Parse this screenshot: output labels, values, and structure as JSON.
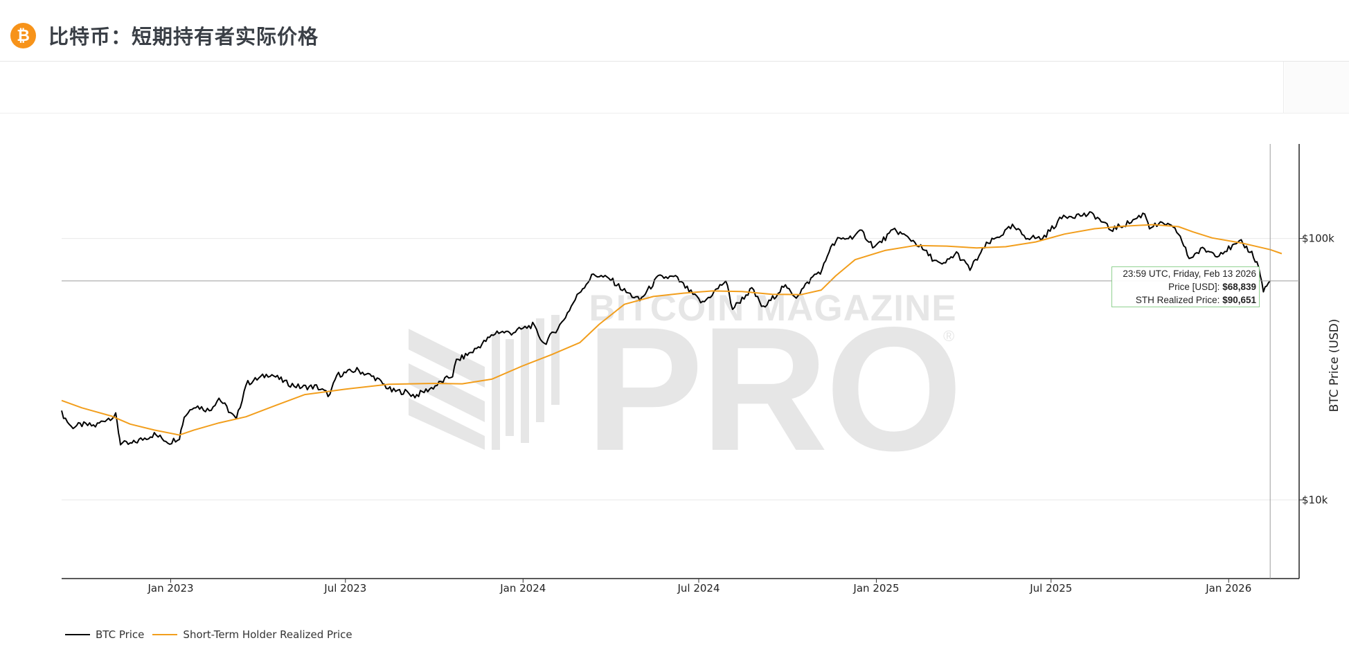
{
  "header": {
    "logo_glyph": "₿",
    "title": "比特币：短期持有者实际价格"
  },
  "watermark": {
    "line1": "BITCOIN MAGAZINE",
    "line2": "PRO",
    "mark": "®"
  },
  "tooltip": {
    "timestamp": "23:59 UTC, Friday, Feb 13 2026",
    "price_label": "Price [USD]:",
    "price_value": "$68,839",
    "sth_label": "STH Realized Price:",
    "sth_value": "$90,651"
  },
  "chart_data": {
    "type": "line",
    "title": "比特币：短期持有者实际价格",
    "xlabel": "",
    "ylabel": "BTC Price (USD)",
    "y_scale": "log",
    "ylim": [
      5000,
      230000
    ],
    "x_range": [
      "2022-09-10",
      "2026-03-15"
    ],
    "x_tick_labels": [
      "Jan 2023",
      "Jul 2023",
      "Jan 2024",
      "Jul 2024",
      "Jan 2025",
      "Jul 2025",
      "Jan 2026"
    ],
    "x_ticks": [
      "2023-01-01",
      "2023-07-01",
      "2024-01-01",
      "2024-07-01",
      "2025-01-01",
      "2025-07-01",
      "2026-01-01"
    ],
    "y_ticks": [
      10000,
      100000
    ],
    "y_tick_labels": [
      "$10k",
      "$100k"
    ],
    "crosshair": {
      "date": "2026-02-13",
      "price": 68839
    },
    "grid": "horizontal",
    "legend_position": "bottom-left",
    "series": [
      {
        "name": "BTC Price",
        "color": "#000000",
        "points": [
          [
            "2022-09-10",
            21500
          ],
          [
            "2022-09-20",
            19000
          ],
          [
            "2022-10-01",
            19400
          ],
          [
            "2022-10-15",
            19200
          ],
          [
            "2022-10-25",
            20300
          ],
          [
            "2022-11-05",
            21000
          ],
          [
            "2022-11-08",
            18200
          ],
          [
            "2022-11-10",
            16500
          ],
          [
            "2022-11-20",
            16300
          ],
          [
            "2022-12-01",
            17000
          ],
          [
            "2022-12-15",
            17800
          ],
          [
            "2022-12-31",
            16600
          ],
          [
            "2023-01-10",
            17400
          ],
          [
            "2023-01-15",
            20800
          ],
          [
            "2023-01-25",
            23000
          ],
          [
            "2023-02-10",
            22000
          ],
          [
            "2023-02-20",
            24500
          ],
          [
            "2023-03-10",
            20200
          ],
          [
            "2023-03-20",
            27800
          ],
          [
            "2023-04-10",
            30000
          ],
          [
            "2023-04-14",
            30400
          ],
          [
            "2023-05-01",
            28000
          ],
          [
            "2023-05-15",
            27000
          ],
          [
            "2023-06-01",
            27100
          ],
          [
            "2023-06-15",
            25100
          ],
          [
            "2023-06-22",
            30000
          ],
          [
            "2023-07-13",
            31400
          ],
          [
            "2023-08-01",
            29300
          ],
          [
            "2023-08-18",
            26100
          ],
          [
            "2023-09-01",
            25900
          ],
          [
            "2023-09-11",
            25000
          ],
          [
            "2023-09-30",
            27000
          ],
          [
            "2023-10-20",
            30000
          ],
          [
            "2023-10-24",
            34000
          ],
          [
            "2023-11-10",
            37000
          ],
          [
            "2023-12-05",
            44000
          ],
          [
            "2023-12-20",
            43600
          ],
          [
            "2024-01-11",
            46600
          ],
          [
            "2024-01-23",
            39500
          ],
          [
            "2024-02-10",
            47500
          ],
          [
            "2024-02-28",
            62000
          ],
          [
            "2024-03-14",
            73000
          ],
          [
            "2024-04-01",
            69700
          ],
          [
            "2024-04-15",
            63000
          ],
          [
            "2024-05-01",
            58000
          ],
          [
            "2024-05-20",
            71000
          ],
          [
            "2024-06-07",
            71000
          ],
          [
            "2024-06-25",
            61000
          ],
          [
            "2024-07-05",
            56500
          ],
          [
            "2024-07-29",
            69000
          ],
          [
            "2024-08-05",
            53900
          ],
          [
            "2024-08-25",
            64000
          ],
          [
            "2024-09-06",
            54000
          ],
          [
            "2024-09-27",
            65800
          ],
          [
            "2024-10-10",
            60000
          ],
          [
            "2024-10-29",
            72500
          ],
          [
            "2024-11-06",
            75600
          ],
          [
            "2024-11-13",
            90000
          ],
          [
            "2024-11-22",
            98900
          ],
          [
            "2024-12-05",
            101000
          ],
          [
            "2024-12-17",
            106000
          ],
          [
            "2024-12-30",
            92500
          ],
          [
            "2025-01-20",
            108000
          ],
          [
            "2025-02-10",
            97000
          ],
          [
            "2025-02-28",
            84000
          ],
          [
            "2025-03-10",
            78500
          ],
          [
            "2025-03-25",
            88000
          ],
          [
            "2025-04-08",
            76300
          ],
          [
            "2025-04-25",
            94500
          ],
          [
            "2025-05-22",
            111000
          ],
          [
            "2025-06-05",
            101500
          ],
          [
            "2025-06-22",
            100000
          ],
          [
            "2025-07-14",
            122000
          ],
          [
            "2025-08-14",
            123500
          ],
          [
            "2025-09-01",
            108000
          ],
          [
            "2025-09-20",
            115000
          ],
          [
            "2025-10-06",
            125000
          ],
          [
            "2025-10-11",
            111000
          ],
          [
            "2025-10-28",
            114000
          ],
          [
            "2025-11-10",
            105000
          ],
          [
            "2025-11-21",
            84000
          ],
          [
            "2025-12-05",
            91000
          ],
          [
            "2025-12-20",
            87000
          ],
          [
            "2026-01-05",
            93000
          ],
          [
            "2026-01-14",
            96500
          ],
          [
            "2026-01-25",
            88000
          ],
          [
            "2026-02-01",
            78000
          ],
          [
            "2026-02-06",
            63000
          ],
          [
            "2026-02-13",
            68839
          ]
        ]
      },
      {
        "name": "Short-Term Holder Realized Price",
        "color": "#f29e1c",
        "points": [
          [
            "2022-09-10",
            24000
          ],
          [
            "2022-10-01",
            22500
          ],
          [
            "2022-11-01",
            20900
          ],
          [
            "2022-11-20",
            19500
          ],
          [
            "2022-12-15",
            18500
          ],
          [
            "2023-01-10",
            17700
          ],
          [
            "2023-01-25",
            18500
          ],
          [
            "2023-02-20",
            19700
          ],
          [
            "2023-03-20",
            20800
          ],
          [
            "2023-04-20",
            23000
          ],
          [
            "2023-05-20",
            25300
          ],
          [
            "2023-06-30",
            26500
          ],
          [
            "2023-08-15",
            27700
          ],
          [
            "2023-09-30",
            27900
          ],
          [
            "2023-10-30",
            27800
          ],
          [
            "2023-11-30",
            29000
          ],
          [
            "2023-12-31",
            32500
          ],
          [
            "2024-01-31",
            36000
          ],
          [
            "2024-02-29",
            40000
          ],
          [
            "2024-03-20",
            47000
          ],
          [
            "2024-04-15",
            56000
          ],
          [
            "2024-05-15",
            60000
          ],
          [
            "2024-06-15",
            61800
          ],
          [
            "2024-07-15",
            63000
          ],
          [
            "2024-08-15",
            62700
          ],
          [
            "2024-09-15",
            61200
          ],
          [
            "2024-10-15",
            61000
          ],
          [
            "2024-11-05",
            63500
          ],
          [
            "2024-11-20",
            72000
          ],
          [
            "2024-12-10",
            83000
          ],
          [
            "2025-01-10",
            90000
          ],
          [
            "2025-02-10",
            94000
          ],
          [
            "2025-03-15",
            93500
          ],
          [
            "2025-04-15",
            92000
          ],
          [
            "2025-05-15",
            93000
          ],
          [
            "2025-06-15",
            97000
          ],
          [
            "2025-07-15",
            104000
          ],
          [
            "2025-08-15",
            109000
          ],
          [
            "2025-09-15",
            111500
          ],
          [
            "2025-10-15",
            113000
          ],
          [
            "2025-11-10",
            111000
          ],
          [
            "2025-11-25",
            106000
          ],
          [
            "2025-12-15",
            100500
          ],
          [
            "2026-01-15",
            96000
          ],
          [
            "2026-02-13",
            90651
          ],
          [
            "2026-02-25",
            87500
          ]
        ]
      }
    ]
  },
  "legend": {
    "items": [
      {
        "label": "BTC Price",
        "color": "#000000"
      },
      {
        "label": "Short-Term Holder Realized Price",
        "color": "#f29e1c"
      }
    ]
  }
}
